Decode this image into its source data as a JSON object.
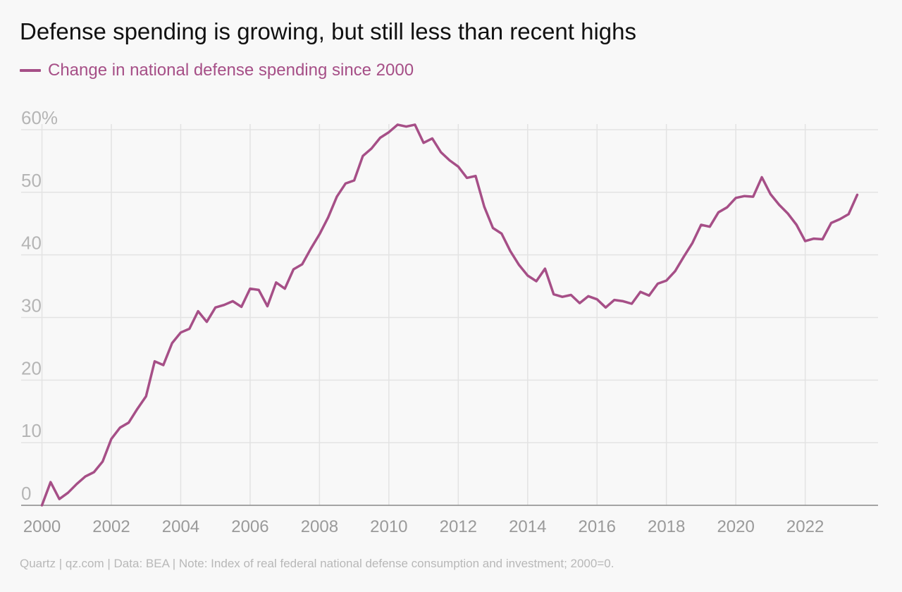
{
  "chart_data": {
    "type": "line",
    "title": "Defense spending is growing, but still less than recent highs",
    "legend_label": "Change in national defense spending since 2000",
    "series_color": "#a64f87",
    "y_unit": "%",
    "ylim": [
      0,
      60
    ],
    "y_ticks": [
      0,
      10,
      20,
      30,
      40,
      50,
      60
    ],
    "y_tick_labels": [
      "0",
      "10",
      "20",
      "30",
      "40",
      "50",
      "60%"
    ],
    "x_range": [
      1999.4,
      2024.1
    ],
    "x_ticks": [
      2000,
      2002,
      2004,
      2006,
      2008,
      2010,
      2012,
      2014,
      2016,
      2018,
      2020,
      2022
    ],
    "x_tick_labels": [
      "2000",
      "2002",
      "2004",
      "2006",
      "2008",
      "2010",
      "2012",
      "2014",
      "2016",
      "2018",
      "2020",
      "2022"
    ],
    "grid": true,
    "series": [
      {
        "name": "Change in national defense spending since 2000",
        "start_year": 2000,
        "step_years": 0.25,
        "values": [
          0,
          3.7,
          1.0,
          2.0,
          3.4,
          4.6,
          5.3,
          7.0,
          10.6,
          12.4,
          13.2,
          15.4,
          17.4,
          23.0,
          22.4,
          25.9,
          27.6,
          28.2,
          31.0,
          29.3,
          31.6,
          32.0,
          32.6,
          31.7,
          34.6,
          34.4,
          31.8,
          35.6,
          34.6,
          37.7,
          38.5,
          41.0,
          43.3,
          46.0,
          49.3,
          51.4,
          51.9,
          55.8,
          57.0,
          58.7,
          59.6,
          60.8,
          60.5,
          60.8,
          57.9,
          58.6,
          56.4,
          55.1,
          54.1,
          52.3,
          52.6,
          47.7,
          44.3,
          43.4,
          40.6,
          38.4,
          36.7,
          35.8,
          37.8,
          33.7,
          33.3,
          33.6,
          32.3,
          33.4,
          32.9,
          31.6,
          32.8,
          32.6,
          32.2,
          34.1,
          33.5,
          35.4,
          35.9,
          37.4,
          39.7,
          41.9,
          44.8,
          44.5,
          46.8,
          47.6,
          49.1,
          49.4,
          49.3,
          52.4,
          49.7,
          48.0,
          46.6,
          44.8,
          42.2,
          42.6,
          42.5,
          45.1,
          45.7,
          46.5,
          49.6
        ]
      }
    ]
  },
  "footer": "Quartz | qz.com | Data: BEA | Note: Index of real federal national defense consumption and investment; 2000=0."
}
